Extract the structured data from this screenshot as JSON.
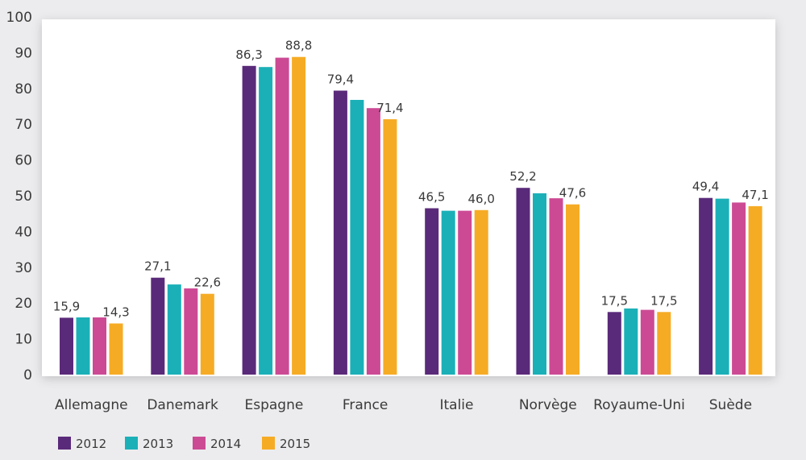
{
  "chart_data": {
    "type": "bar",
    "categories": [
      "Allemagne",
      "Danemark",
      "Espagne",
      "France",
      "Italie",
      "Norvège",
      "Royaume-Uni",
      "Suède"
    ],
    "series": [
      {
        "name": "2012",
        "color": "#5a2a7a",
        "values": [
          15.9,
          27.1,
          86.3,
          79.4,
          46.5,
          52.2,
          17.5,
          49.4
        ]
      },
      {
        "name": "2013",
        "color": "#1bb0b8",
        "values": [
          16.0,
          25.2,
          86.0,
          76.8,
          45.8,
          50.7,
          18.5,
          49.2
        ]
      },
      {
        "name": "2014",
        "color": "#cc4a94",
        "values": [
          16.0,
          24.1,
          88.6,
          74.5,
          45.8,
          49.3,
          18.1,
          48.1
        ]
      },
      {
        "name": "2015",
        "color": "#f6ab25",
        "values": [
          14.3,
          22.6,
          88.8,
          71.4,
          46.0,
          47.6,
          17.5,
          47.1
        ]
      }
    ],
    "data_labels": [
      {
        "category": 0,
        "series": 0,
        "text": "15,9"
      },
      {
        "category": 0,
        "series": 3,
        "text": "14,3"
      },
      {
        "category": 1,
        "series": 0,
        "text": "27,1"
      },
      {
        "category": 1,
        "series": 3,
        "text": "22,6"
      },
      {
        "category": 2,
        "series": 0,
        "text": "86,3"
      },
      {
        "category": 2,
        "series": 3,
        "text": "88,8"
      },
      {
        "category": 3,
        "series": 0,
        "text": "79,4"
      },
      {
        "category": 3,
        "series": 3,
        "text": "71,4"
      },
      {
        "category": 4,
        "series": 0,
        "text": "46,5"
      },
      {
        "category": 4,
        "series": 3,
        "text": "46,0"
      },
      {
        "category": 5,
        "series": 0,
        "text": "52,2"
      },
      {
        "category": 5,
        "series": 3,
        "text": "47,6"
      },
      {
        "category": 6,
        "series": 0,
        "text": "17,5"
      },
      {
        "category": 6,
        "series": 3,
        "text": "17,5"
      },
      {
        "category": 7,
        "series": 0,
        "text": "49,4"
      },
      {
        "category": 7,
        "series": 3,
        "text": "47,1"
      }
    ],
    "y_ticks": [
      "0",
      "10",
      "20",
      "30",
      "40",
      "50",
      "60",
      "70",
      "80",
      "90",
      "100"
    ],
    "ylim": [
      0,
      100
    ],
    "title": "",
    "xlabel": "",
    "ylabel": "",
    "grid": false,
    "legend_position": "bottom-left"
  }
}
